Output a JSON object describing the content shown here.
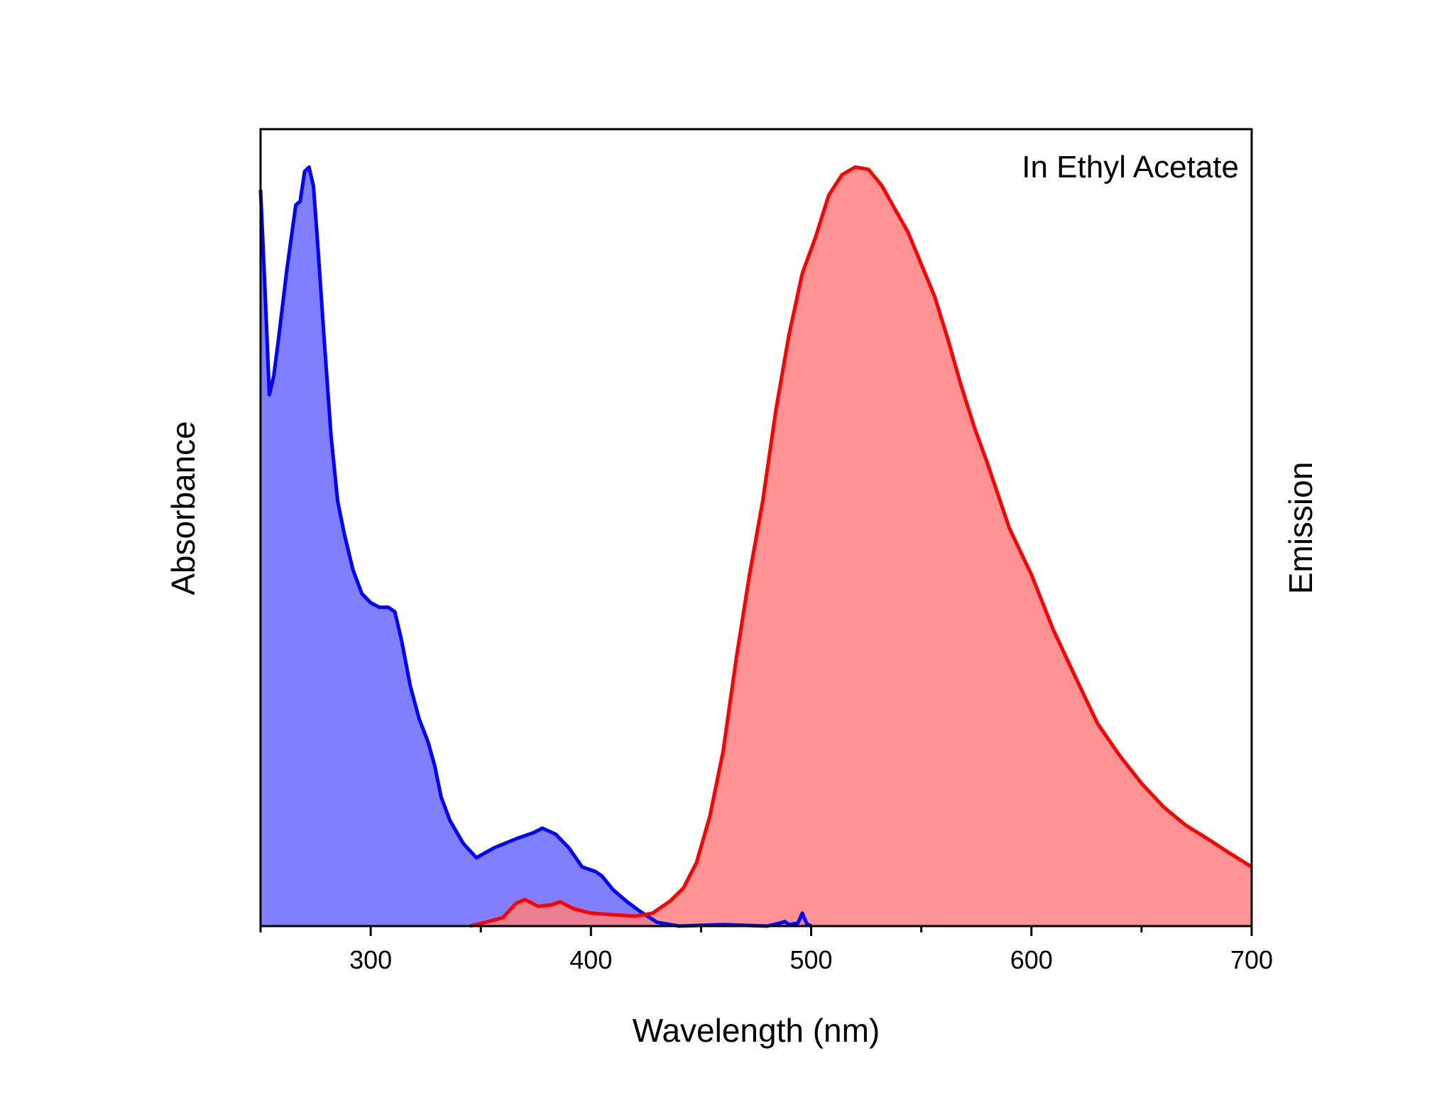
{
  "chart_data": {
    "type": "area",
    "title": "",
    "annotation": "In Ethyl Acetate",
    "xlabel": "Wavelength (nm)",
    "ylabel_left": "Absorbance",
    "ylabel_right": "Emission",
    "xlim": [
      250,
      700
    ],
    "ylim": [
      0,
      1.05
    ],
    "x_ticks": [
      300,
      400,
      500,
      600,
      700
    ],
    "x_minor_ticks": [
      250,
      350,
      450,
      550,
      650
    ],
    "y_ticks_shown": false,
    "grid": false,
    "colors": {
      "absorbance_line": "#0000ff",
      "absorbance_fill": "#8080ff",
      "emission_line": "#ff0000",
      "emission_fill": "#ff8080"
    },
    "series": [
      {
        "axis": "left",
        "x": [
          250,
          252,
          254,
          256,
          258,
          262,
          266,
          268,
          270,
          272,
          274,
          276,
          279,
          282,
          285,
          288,
          292,
          296,
          300,
          304,
          308,
          311,
          314,
          318,
          322,
          326,
          329,
          332,
          336,
          342,
          348,
          356,
          366,
          374,
          378,
          384,
          390,
          396,
          402,
          405,
          410,
          416,
          422,
          430,
          440,
          460,
          480,
          486,
          488,
          490,
          494,
          496,
          498,
          500
        ],
        "y": [
          0.97,
          0.84,
          0.7,
          0.725,
          0.77,
          0.866,
          0.95,
          0.955,
          0.994,
          1.0,
          0.975,
          0.896,
          0.768,
          0.646,
          0.56,
          0.517,
          0.469,
          0.438,
          0.426,
          0.42,
          0.42,
          0.414,
          0.377,
          0.316,
          0.273,
          0.243,
          0.212,
          0.17,
          0.139,
          0.109,
          0.09,
          0.103,
          0.115,
          0.123,
          0.129,
          0.121,
          0.103,
          0.078,
          0.072,
          0.066,
          0.048,
          0.033,
          0.02,
          0.005,
          0.0,
          0.002,
          0.0,
          0.004,
          0.006,
          0.002,
          0.004,
          0.017,
          0.003,
          0.0
        ]
      },
      {
        "axis": "right",
        "x": [
          345,
          352,
          360,
          366,
          370,
          376,
          382,
          386,
          392,
          400,
          410,
          420,
          428,
          436,
          442,
          448,
          454,
          460,
          466,
          472,
          478,
          484,
          490,
          496,
          502,
          508,
          514,
          520,
          526,
          532,
          538,
          544,
          550,
          556,
          562,
          568,
          574,
          580,
          590,
          600,
          610,
          620,
          630,
          640,
          650,
          660,
          670,
          680,
          690,
          700
        ],
        "y": [
          0.0,
          0.005,
          0.011,
          0.03,
          0.035,
          0.026,
          0.028,
          0.032,
          0.023,
          0.017,
          0.015,
          0.013,
          0.017,
          0.033,
          0.05,
          0.084,
          0.145,
          0.23,
          0.353,
          0.463,
          0.56,
          0.68,
          0.78,
          0.86,
          0.908,
          0.963,
          0.99,
          1.0,
          0.997,
          0.976,
          0.945,
          0.914,
          0.872,
          0.83,
          0.774,
          0.713,
          0.658,
          0.61,
          0.524,
          0.463,
          0.39,
          0.328,
          0.267,
          0.225,
          0.188,
          0.157,
          0.133,
          0.115,
          0.096,
          0.078
        ]
      }
    ]
  }
}
